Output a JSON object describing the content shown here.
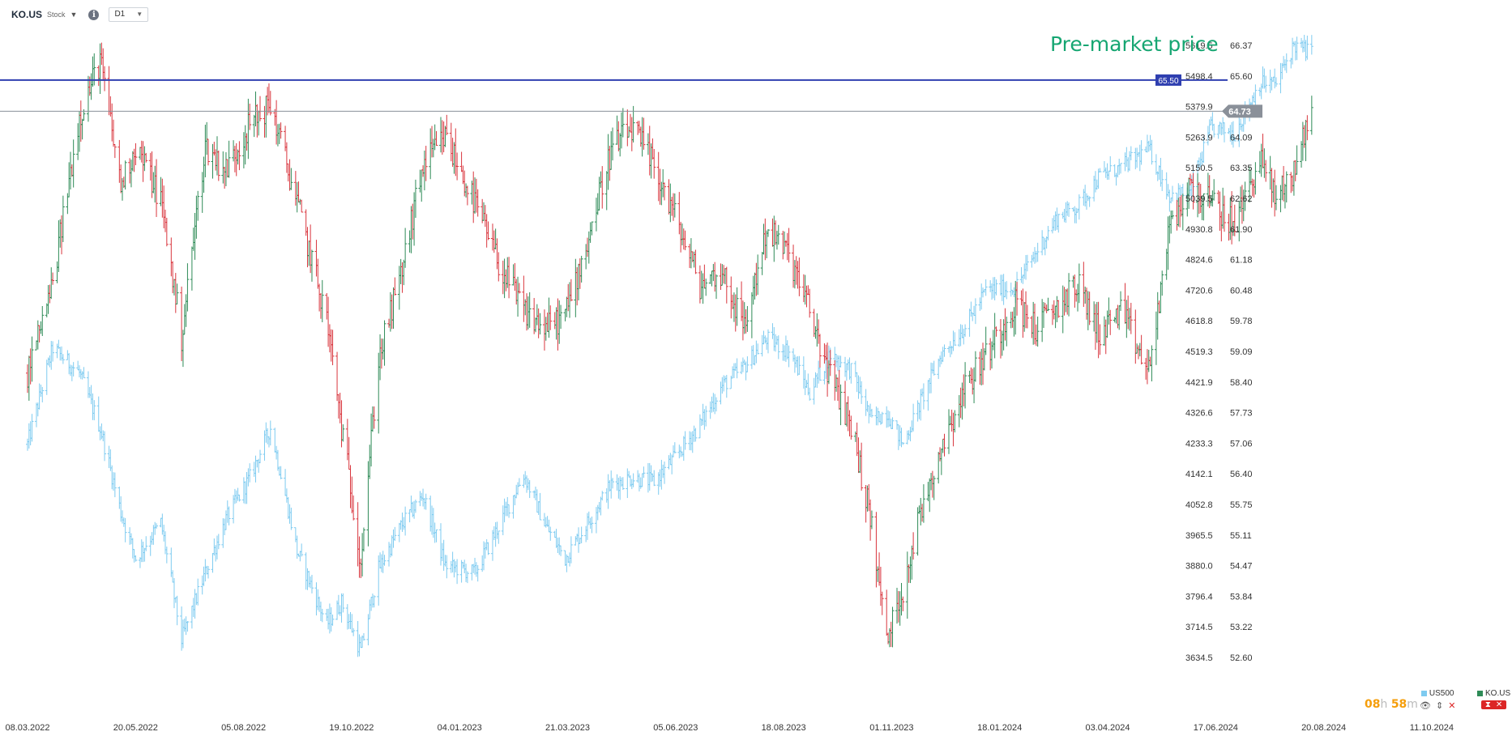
{
  "header": {
    "symbol": "KO.US",
    "instrument_type": "Stock",
    "timeframe": "D1",
    "icons": [
      "chevron-down-icon",
      "info-icon"
    ]
  },
  "chart_data": {
    "type": "bar",
    "subtype": "ohlc",
    "x_ticks": [
      "08.03.2022",
      "20.05.2022",
      "05.08.2022",
      "19.10.2022",
      "04.01.2023",
      "21.03.2023",
      "05.06.2023",
      "18.08.2023",
      "01.11.2023",
      "18.01.2024",
      "03.04.2024",
      "17.06.2024",
      "20.08.2024",
      "11.10.2024"
    ],
    "y_right_ticks": [
      "66.37",
      "65.60",
      "64.84",
      "64.09",
      "63.35",
      "62.62",
      "61.90",
      "61.18",
      "60.48",
      "59.78",
      "59.09",
      "58.40",
      "57.73",
      "57.06",
      "56.40",
      "55.75",
      "55.11",
      "54.47",
      "53.84",
      "53.22",
      "52.60"
    ],
    "y_left_ticks": [
      "5619.5",
      "5498.4",
      "5379.9",
      "5263.9",
      "5150.5",
      "5039.5",
      "4930.8",
      "4824.6",
      "4720.6",
      "4618.8",
      "4519.3",
      "4421.9",
      "4326.6",
      "4233.3",
      "4142.1",
      "4052.8",
      "3965.5",
      "3880.0",
      "3796.4",
      "3714.5",
      "3634.5"
    ],
    "ylim_ko": [
      52.2,
      66.8
    ],
    "ylim_us500": [
      3590,
      5690
    ],
    "series": [
      {
        "name": "KO.US",
        "color_up": "#2e8b57",
        "color_down": "#d9363e",
        "close_points": [
          [
            "08.03.2022",
            58.6
          ],
          [
            "25.03.2022",
            60.6
          ],
          [
            "12.04.2022",
            64.6
          ],
          [
            "26.04.2022",
            66.0
          ],
          [
            "10.05.2022",
            62.9
          ],
          [
            "20.05.2022",
            63.9
          ],
          [
            "06.06.2022",
            62.6
          ],
          [
            "20.06.2022",
            59.4
          ],
          [
            "06.07.2022",
            63.9
          ],
          [
            "20.07.2022",
            63.3
          ],
          [
            "05.08.2022",
            64.4
          ],
          [
            "19.08.2022",
            64.9
          ],
          [
            "06.09.2022",
            62.5
          ],
          [
            "26.09.2022",
            59.8
          ],
          [
            "06.10.2022",
            57.4
          ],
          [
            "19.10.2022",
            54.6
          ],
          [
            "31.10.2022",
            58.9
          ],
          [
            "15.11.2022",
            60.8
          ],
          [
            "30.11.2022",
            63.4
          ],
          [
            "15.12.2022",
            64.1
          ],
          [
            "04.01.2023",
            62.5
          ],
          [
            "20.01.2023",
            61.1
          ],
          [
            "06.02.2023",
            60.0
          ],
          [
            "21.02.2023",
            59.6
          ],
          [
            "06.03.2023",
            59.9
          ],
          [
            "21.03.2023",
            61.6
          ],
          [
            "06.04.2023",
            63.8
          ],
          [
            "20.04.2023",
            64.3
          ],
          [
            "05.05.2023",
            63.4
          ],
          [
            "19.05.2023",
            62.2
          ],
          [
            "05.06.2023",
            60.6
          ],
          [
            "20.06.2023",
            60.9
          ],
          [
            "05.07.2023",
            59.6
          ],
          [
            "20.07.2023",
            61.9
          ],
          [
            "04.08.2023",
            61.3
          ],
          [
            "18.08.2023",
            60.0
          ],
          [
            "01.09.2023",
            58.5
          ],
          [
            "15.09.2023",
            57.5
          ],
          [
            "29.09.2023",
            55.3
          ],
          [
            "09.10.2023",
            52.9
          ],
          [
            "20.10.2023",
            54.0
          ],
          [
            "01.11.2023",
            55.6
          ],
          [
            "15.11.2023",
            57.0
          ],
          [
            "01.12.2023",
            58.3
          ],
          [
            "15.12.2023",
            59.0
          ],
          [
            "04.01.2024",
            60.2
          ],
          [
            "18.01.2024",
            59.6
          ],
          [
            "01.02.2024",
            60.1
          ],
          [
            "15.02.2024",
            60.6
          ],
          [
            "01.03.2024",
            59.5
          ],
          [
            "15.03.2024",
            60.0
          ],
          [
            "03.04.2024",
            58.6
          ],
          [
            "17.04.2024",
            61.9
          ],
          [
            "01.05.2024",
            62.9
          ],
          [
            "15.05.2024",
            62.5
          ],
          [
            "31.05.2024",
            62.0
          ],
          [
            "17.06.2024",
            63.6
          ],
          [
            "28.06.2024",
            62.6
          ],
          [
            "10.07.2024",
            63.3
          ],
          [
            "22.07.2024",
            64.73
          ]
        ]
      },
      {
        "name": "US500",
        "color": "#7ecbf0",
        "close_points": [
          [
            "08.03.2022",
            4230
          ],
          [
            "25.03.2022",
            4530
          ],
          [
            "12.04.2022",
            4450
          ],
          [
            "26.04.2022",
            4280
          ],
          [
            "10.05.2022",
            4030
          ],
          [
            "20.05.2022",
            3900
          ],
          [
            "06.06.2022",
            4000
          ],
          [
            "20.06.2022",
            3680
          ],
          [
            "06.07.2022",
            3860
          ],
          [
            "20.07.2022",
            4010
          ],
          [
            "05.08.2022",
            4130
          ],
          [
            "19.08.2022",
            4280
          ],
          [
            "06.09.2022",
            3920
          ],
          [
            "26.09.2022",
            3720
          ],
          [
            "06.10.2022",
            3780
          ],
          [
            "19.10.2022",
            3650
          ],
          [
            "31.10.2022",
            3870
          ],
          [
            "15.11.2022",
            3990
          ],
          [
            "30.11.2022",
            4080
          ],
          [
            "15.12.2022",
            3880
          ],
          [
            "04.01.2023",
            3860
          ],
          [
            "20.01.2023",
            3990
          ],
          [
            "06.02.2023",
            4140
          ],
          [
            "21.02.2023",
            3990
          ],
          [
            "06.03.2023",
            3900
          ],
          [
            "21.03.2023",
            4000
          ],
          [
            "06.04.2023",
            4110
          ],
          [
            "20.04.2023",
            4130
          ],
          [
            "05.05.2023",
            4120
          ],
          [
            "19.05.2023",
            4190
          ],
          [
            "05.06.2023",
            4290
          ],
          [
            "20.06.2023",
            4410
          ],
          [
            "05.07.2023",
            4470
          ],
          [
            "20.07.2023",
            4560
          ],
          [
            "04.08.2023",
            4520
          ],
          [
            "18.08.2023",
            4390
          ],
          [
            "01.09.2023",
            4510
          ],
          [
            "15.09.2023",
            4460
          ],
          [
            "29.09.2023",
            4300
          ],
          [
            "09.10.2023",
            4330
          ],
          [
            "20.10.2023",
            4230
          ],
          [
            "01.11.2023",
            4360
          ],
          [
            "15.11.2023",
            4510
          ],
          [
            "01.12.2023",
            4600
          ],
          [
            "15.12.2023",
            4720
          ],
          [
            "04.01.2024",
            4730
          ],
          [
            "18.01.2024",
            4850
          ],
          [
            "01.02.2024",
            4970
          ],
          [
            "15.02.2024",
            5010
          ],
          [
            "01.03.2024",
            5120
          ],
          [
            "15.03.2024",
            5150
          ],
          [
            "03.04.2024",
            5220
          ],
          [
            "17.04.2024",
            5050
          ],
          [
            "01.05.2024",
            5060
          ],
          [
            "15.05.2024",
            5300
          ],
          [
            "31.05.2024",
            5280
          ],
          [
            "17.06.2024",
            5470
          ],
          [
            "28.06.2024",
            5470
          ],
          [
            "10.07.2024",
            5620
          ],
          [
            "22.07.2024",
            5590
          ]
        ]
      }
    ],
    "horizontal_levels": [
      {
        "label": "65.50",
        "value": 65.5,
        "color": "#2f3fb0"
      },
      {
        "label": "64.73",
        "value": 64.73,
        "color": "#8a9099"
      }
    ],
    "annotation": {
      "text": "Pre-market price",
      "color": "#16a672"
    },
    "legend": [
      {
        "name": "US500",
        "color": "#7ecbf0"
      },
      {
        "name": "KO.US",
        "color": "#2e8b57"
      }
    ],
    "grid": false
  },
  "countdown": {
    "hours": "08",
    "hours_unit": "h",
    "minutes": "58",
    "minutes_unit": "m"
  },
  "legend_controls": {
    "eye_icon": "eye-icon",
    "sort_icon": "sort-icon",
    "close_icon": "close-icon",
    "remove_icons": "remove-icons"
  }
}
